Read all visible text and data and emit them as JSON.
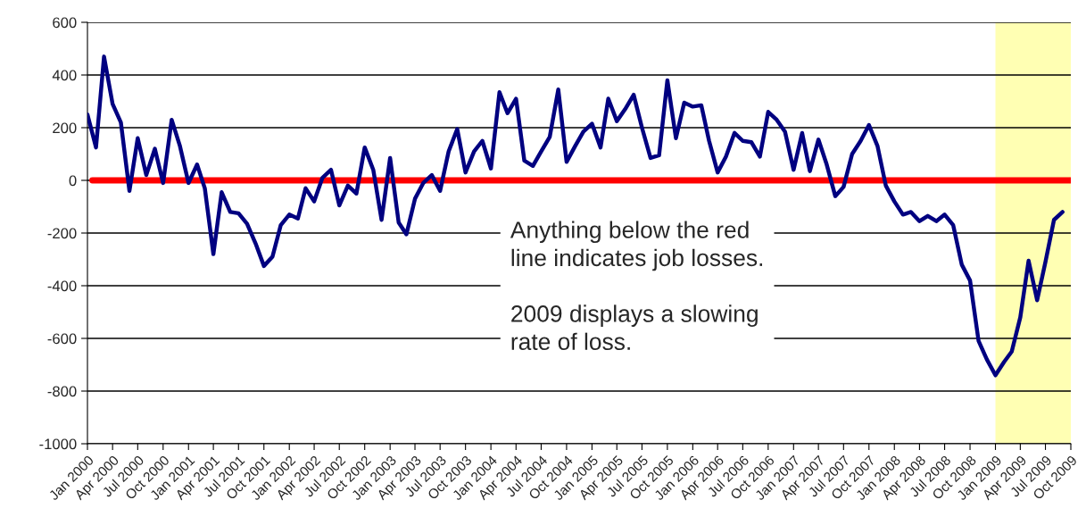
{
  "chart_data": {
    "type": "line",
    "x": [
      "2000-01",
      "2000-02",
      "2000-03",
      "2000-04",
      "2000-05",
      "2000-06",
      "2000-07",
      "2000-08",
      "2000-09",
      "2000-10",
      "2000-11",
      "2000-12",
      "2001-01",
      "2001-02",
      "2001-03",
      "2001-04",
      "2001-05",
      "2001-06",
      "2001-07",
      "2001-08",
      "2001-09",
      "2001-10",
      "2001-11",
      "2001-12",
      "2002-01",
      "2002-02",
      "2002-03",
      "2002-04",
      "2002-05",
      "2002-06",
      "2002-07",
      "2002-08",
      "2002-09",
      "2002-10",
      "2002-11",
      "2002-12",
      "2003-01",
      "2003-02",
      "2003-03",
      "2003-04",
      "2003-05",
      "2003-06",
      "2003-07",
      "2003-08",
      "2003-09",
      "2003-10",
      "2003-11",
      "2003-12",
      "2004-01",
      "2004-02",
      "2004-03",
      "2004-04",
      "2004-05",
      "2004-06",
      "2004-07",
      "2004-08",
      "2004-09",
      "2004-10",
      "2004-11",
      "2004-12",
      "2005-01",
      "2005-02",
      "2005-03",
      "2005-04",
      "2005-05",
      "2005-06",
      "2005-07",
      "2005-08",
      "2005-09",
      "2005-10",
      "2005-11",
      "2005-12",
      "2006-01",
      "2006-02",
      "2006-03",
      "2006-04",
      "2006-05",
      "2006-06",
      "2006-07",
      "2006-08",
      "2006-09",
      "2006-10",
      "2006-11",
      "2006-12",
      "2007-01",
      "2007-02",
      "2007-03",
      "2007-04",
      "2007-05",
      "2007-06",
      "2007-07",
      "2007-08",
      "2007-09",
      "2007-10",
      "2007-11",
      "2007-12",
      "2008-01",
      "2008-02",
      "2008-03",
      "2008-04",
      "2008-05",
      "2008-06",
      "2008-07",
      "2008-08",
      "2008-09",
      "2008-10",
      "2008-11",
      "2008-12",
      "2009-01",
      "2009-02",
      "2009-03",
      "2009-04",
      "2009-05",
      "2009-06",
      "2009-07",
      "2009-08",
      "2009-09"
    ],
    "series": [
      {
        "color": "#000080",
        "values": [
          250,
          125,
          470,
          290,
          220,
          -40,
          160,
          20,
          120,
          -10,
          230,
          130,
          -10,
          60,
          -30,
          -280,
          -45,
          -120,
          -125,
          -165,
          -240,
          -325,
          -290,
          -170,
          -130,
          -145,
          -30,
          -80,
          10,
          40,
          -95,
          -20,
          -50,
          125,
          40,
          -150,
          85,
          -160,
          -205,
          -70,
          -10,
          20,
          -40,
          110,
          195,
          30,
          110,
          150,
          45,
          335,
          255,
          310,
          75,
          55,
          110,
          165,
          345,
          70,
          130,
          185,
          215,
          125,
          310,
          225,
          270,
          325,
          200,
          85,
          95,
          380,
          160,
          295,
          280,
          285,
          150,
          30,
          90,
          180,
          150,
          145,
          90,
          260,
          230,
          185,
          40,
          180,
          35,
          155,
          60,
          -60,
          -25,
          100,
          150,
          210,
          130,
          -20,
          -80,
          -130,
          -120,
          -155,
          -135,
          -155,
          -130,
          -170,
          -320,
          -380,
          -610,
          -680,
          -740,
          -690,
          -650,
          -520,
          -305,
          -455,
          -310,
          -150,
          -120
        ]
      }
    ],
    "xlim": [
      "2000-01",
      "2009-10"
    ],
    "xticks": [
      {
        "value": "2000-01",
        "label": "Jan 2000"
      },
      {
        "value": "2000-04",
        "label": "Apr 2000"
      },
      {
        "value": "2000-07",
        "label": "Jul 2000"
      },
      {
        "value": "2000-10",
        "label": "Oct 2000"
      },
      {
        "value": "2001-01",
        "label": "Jan 2001"
      },
      {
        "value": "2001-04",
        "label": "Apr 2001"
      },
      {
        "value": "2001-07",
        "label": "Jul 2001"
      },
      {
        "value": "2001-10",
        "label": "Oct 2001"
      },
      {
        "value": "2002-01",
        "label": "Jan 2002"
      },
      {
        "value": "2002-04",
        "label": "Apr 2002"
      },
      {
        "value": "2002-07",
        "label": "Jul 2002"
      },
      {
        "value": "2002-10",
        "label": "Oct 2002"
      },
      {
        "value": "2003-01",
        "label": "Jan 2003"
      },
      {
        "value": "2003-04",
        "label": "Apr 2003"
      },
      {
        "value": "2003-07",
        "label": "Jul 2003"
      },
      {
        "value": "2003-10",
        "label": "Oct 2003"
      },
      {
        "value": "2004-01",
        "label": "Jan 2004"
      },
      {
        "value": "2004-04",
        "label": "Apr 2004"
      },
      {
        "value": "2004-07",
        "label": "Jul 2004"
      },
      {
        "value": "2004-10",
        "label": "Oct 2004"
      },
      {
        "value": "2005-01",
        "label": "Jan 2005"
      },
      {
        "value": "2005-04",
        "label": "Apr 2005"
      },
      {
        "value": "2005-07",
        "label": "Jul 2005"
      },
      {
        "value": "2005-10",
        "label": "Oct 2005"
      },
      {
        "value": "2006-01",
        "label": "Jan 2006"
      },
      {
        "value": "2006-04",
        "label": "Apr 2006"
      },
      {
        "value": "2006-07",
        "label": "Jul 2006"
      },
      {
        "value": "2006-10",
        "label": "Oct 2006"
      },
      {
        "value": "2007-01",
        "label": "Jan 2007"
      },
      {
        "value": "2007-04",
        "label": "Apr 2007"
      },
      {
        "value": "2007-07",
        "label": "Jul 2007"
      },
      {
        "value": "2007-10",
        "label": "Oct 2007"
      },
      {
        "value": "2008-01",
        "label": "Jan 2008"
      },
      {
        "value": "2008-04",
        "label": "Apr 2008"
      },
      {
        "value": "2008-07",
        "label": "Jul 2008"
      },
      {
        "value": "2008-10",
        "label": "Oct 2008"
      },
      {
        "value": "2009-01",
        "label": "Jan 2009"
      },
      {
        "value": "2009-04",
        "label": "Apr 2009"
      },
      {
        "value": "2009-07",
        "label": "Jul 2009"
      },
      {
        "value": "2009-10",
        "label": "Oct 2009"
      }
    ],
    "ylim": [
      -1000,
      600
    ],
    "yticks": [
      -1000,
      -800,
      -600,
      -400,
      -200,
      0,
      200,
      400,
      600
    ],
    "grid": "y",
    "legend": false,
    "line_style": "solid",
    "marker": "none",
    "ref_lines": [
      {
        "axis": "y",
        "value": 0,
        "color": "#ff0000"
      }
    ],
    "bands": [
      {
        "axis": "x",
        "from": "2009-01",
        "to": "2009-10",
        "color": "#ffffb3"
      }
    ],
    "annotations": [
      "Anything below the red\nline indicates job losses.\n\n2009 displays a slowing\nrate of loss."
    ]
  }
}
